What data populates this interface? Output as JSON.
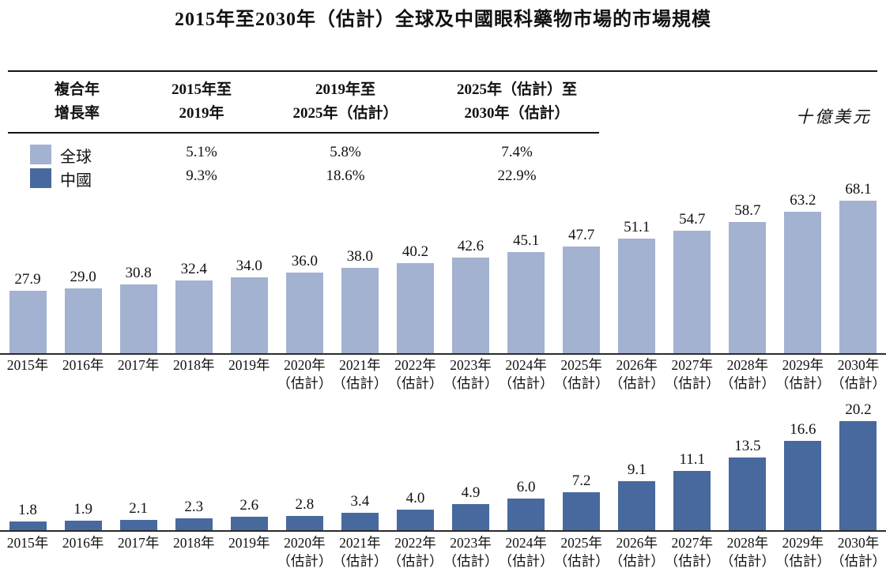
{
  "title": "2015年至2030年（估計）全球及中國眼科藥物市場的市場規模",
  "unit_label": "十億美元",
  "colors": {
    "global": "#a2b2d0",
    "china": "#47699d",
    "axis": "#2b2b2b"
  },
  "table": {
    "cagr_label_lines": [
      "複合年",
      "增長率"
    ],
    "periods": [
      {
        "lines": [
          "2015年至",
          "2019年"
        ]
      },
      {
        "lines": [
          "2019年至",
          "2025年（估計）"
        ]
      },
      {
        "lines": [
          "2025年（估計）至",
          "2030年（估計）"
        ]
      }
    ],
    "rows": [
      {
        "label": "全球",
        "values": [
          "5.1%",
          "5.8%",
          "7.4%"
        ]
      },
      {
        "label": "中國",
        "values": [
          "9.3%",
          "18.6%",
          "22.9%"
        ]
      }
    ]
  },
  "chart_data": [
    {
      "type": "bar",
      "name": "global",
      "series_label": "全球",
      "unit": "十億美元",
      "color": "#a2b2d0",
      "categories": [
        "2015年",
        "2016年",
        "2017年",
        "2018年",
        "2019年",
        "2020年",
        "2021年",
        "2022年",
        "2023年",
        "2024年",
        "2025年",
        "2026年",
        "2027年",
        "2028年",
        "2029年",
        "2030年"
      ],
      "estimate_suffix": "（估計）",
      "estimated_from_index": 5,
      "values": [
        27.9,
        29.0,
        30.8,
        32.4,
        34.0,
        36.0,
        38.0,
        40.2,
        42.6,
        45.1,
        47.7,
        51.1,
        54.7,
        58.7,
        63.2,
        68.1
      ],
      "value_decimals": 1,
      "ylim": [
        0,
        70
      ],
      "grid": false,
      "legend_position": "top-left-table"
    },
    {
      "type": "bar",
      "name": "china",
      "series_label": "中國",
      "unit": "十億美元",
      "color": "#47699d",
      "categories": [
        "2015年",
        "2016年",
        "2017年",
        "2018年",
        "2019年",
        "2020年",
        "2021年",
        "2022年",
        "2023年",
        "2024年",
        "2025年",
        "2026年",
        "2027年",
        "2028年",
        "2029年",
        "2030年"
      ],
      "estimate_suffix": "（估計）",
      "estimated_from_index": 5,
      "values": [
        1.8,
        1.9,
        2.1,
        2.3,
        2.6,
        2.8,
        3.4,
        4.0,
        4.9,
        6.0,
        7.2,
        9.1,
        11.1,
        13.5,
        16.6,
        20.2
      ],
      "value_decimals": 1,
      "ylim": [
        0,
        21
      ],
      "grid": false,
      "legend_position": "top-left-table"
    }
  ]
}
